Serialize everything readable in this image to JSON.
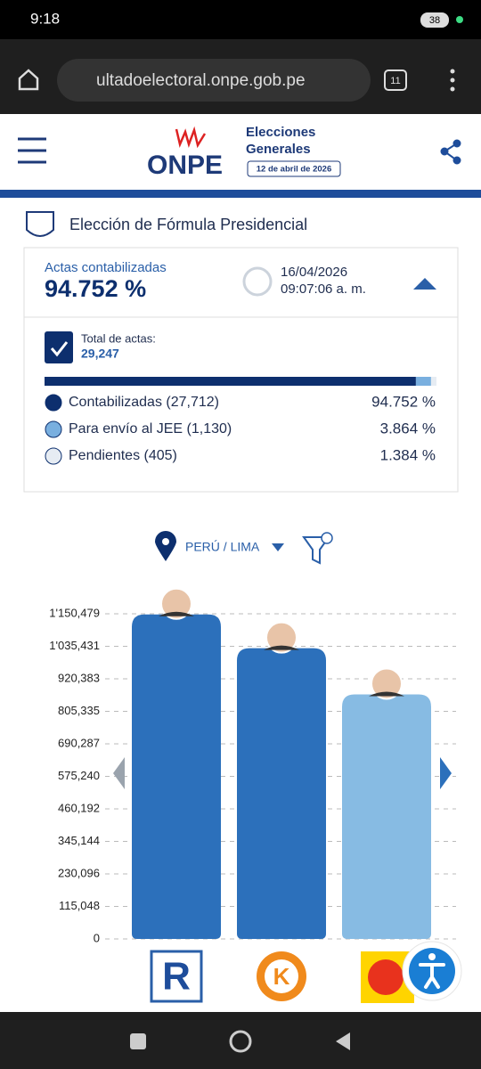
{
  "status_bar": {
    "time": "9:18",
    "battery": "38"
  },
  "browser": {
    "url": "ultadoelectoral.onpe.gob.pe",
    "tabs": "11"
  },
  "header": {
    "logo": "ONPE",
    "title_line1": "Elecciones",
    "title_line2": "Generales",
    "date": "12 de abril de 2026"
  },
  "section_title": "Elección de Fórmula Presidencial",
  "summary": {
    "label": "Actas contabilizadas",
    "percent": "94.752 %",
    "date": "16/04/2026",
    "time": "09:07:06 a. m.",
    "total_label": "Total de actas:",
    "total": "29,247",
    "rows": [
      {
        "label": "Contabilizadas (27,712)",
        "value": 94.752,
        "value_label": "94.752 %",
        "color": "#0d2f6e"
      },
      {
        "label": "Para envío al JEE (1,130)",
        "value": 3.864,
        "value_label": "3.864 %",
        "color": "#79afdf"
      },
      {
        "label": "Pendientes (405)",
        "value": 1.384,
        "value_label": "1.384 %",
        "color": "#e6ecf3"
      }
    ]
  },
  "filter": "PERÚ / LIMA",
  "chart_data": {
    "type": "bar",
    "categories": [
      null,
      null,
      null
    ],
    "values": [
      1148000,
      1028700,
      865300
    ],
    "colors": [
      "#2c70bb",
      "#2c70bb",
      "#87bbe3"
    ],
    "ylim": [
      0,
      1150479
    ],
    "yticks": [
      0,
      {
        "value": 115048,
        "label": "115,048"
      },
      {
        "value": 230096,
        "label": "230,096"
      },
      {
        "value": 345144,
        "label": "345,144"
      },
      {
        "value": 460192,
        "label": "460,192"
      },
      {
        "value": 575240,
        "label": "575,240"
      },
      {
        "value": 690287,
        "label": "690,287"
      },
      {
        "value": 805335,
        "label": "805,335"
      },
      {
        "value": 920383,
        "label": "920,383"
      },
      {
        "value": 1035431,
        "label": "1'035,431"
      },
      {
        "value": 1150479,
        "label": "1'150,479"
      }
    ],
    "grid": true
  }
}
